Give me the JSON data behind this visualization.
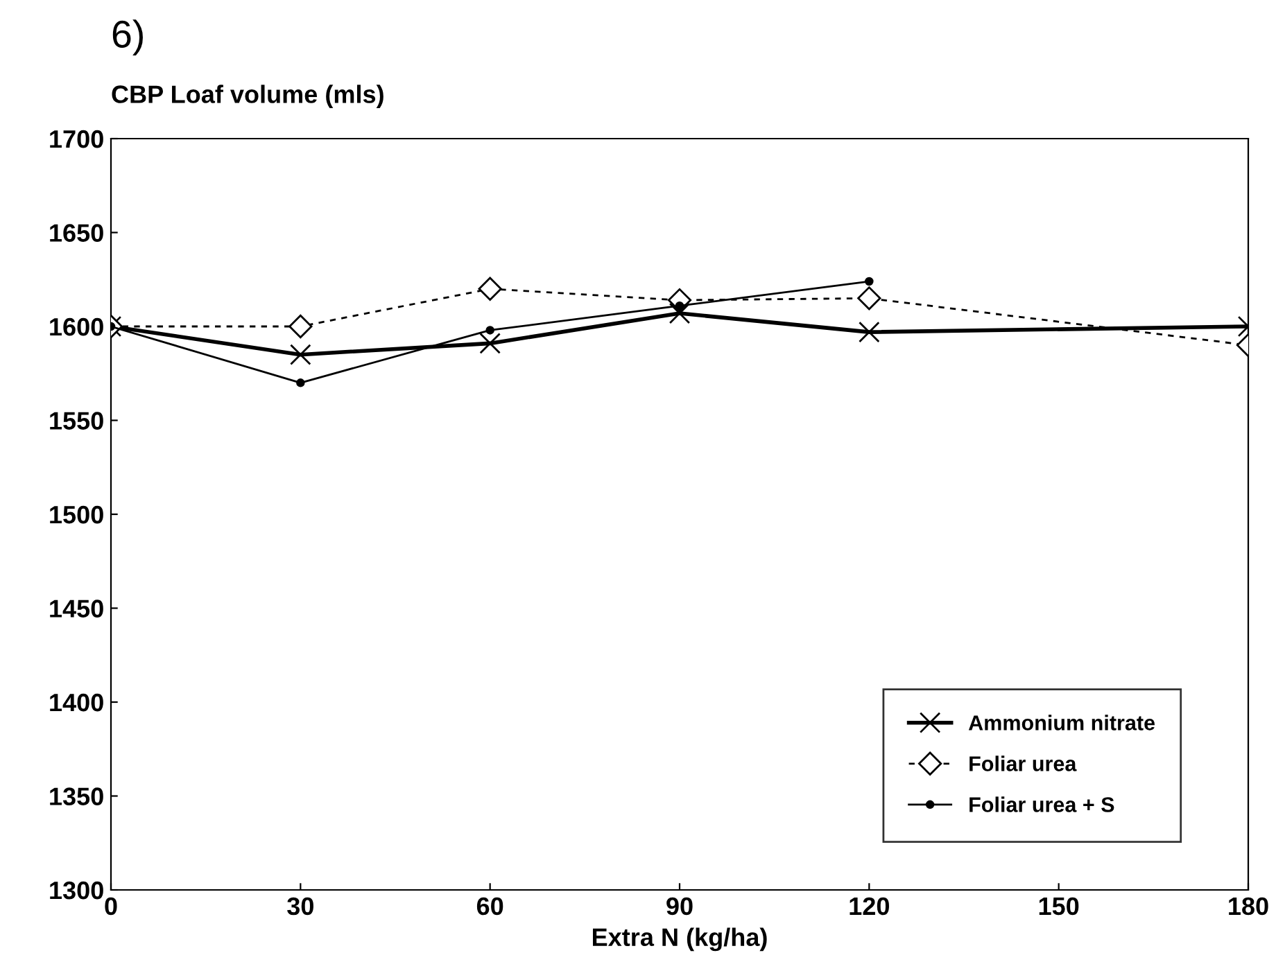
{
  "chart_data": {
    "type": "line",
    "ylabel": "CBP Loaf volume (mls)",
    "xlabel": "Extra N (kg/ha)",
    "annotations": [
      "6)"
    ],
    "xlim": [
      0,
      180
    ],
    "xticks": [
      0,
      30,
      60,
      90,
      120,
      150,
      180
    ],
    "ylim": [
      1300,
      1700
    ],
    "yticks": [
      1300,
      1350,
      1400,
      1450,
      1500,
      1550,
      1600,
      1650,
      1700
    ],
    "grid": false,
    "legend": "bottom right",
    "series": [
      {
        "name": "Ammonium nitrate",
        "color": "#000000",
        "marker": "cross",
        "line_style": "solid",
        "x": [
          0,
          30,
          60,
          90,
          120,
          180
        ],
        "values": [
          1600,
          1585,
          1591,
          1607,
          1597,
          1600
        ]
      },
      {
        "name": "Foliar urea",
        "color": "#000000",
        "marker": "diamond",
        "line_style": "dashed",
        "x": [
          0,
          30,
          60,
          90,
          120,
          180
        ],
        "values": [
          1600,
          1600,
          1620,
          1614,
          1615,
          1590
        ]
      },
      {
        "name": "Foliar urea + S",
        "color": "#000000",
        "marker": "circle",
        "line_style": "solid",
        "x": [
          0,
          30,
          60,
          90,
          120
        ],
        "values": [
          1600,
          1570,
          1598,
          1611,
          1624
        ]
      }
    ]
  }
}
